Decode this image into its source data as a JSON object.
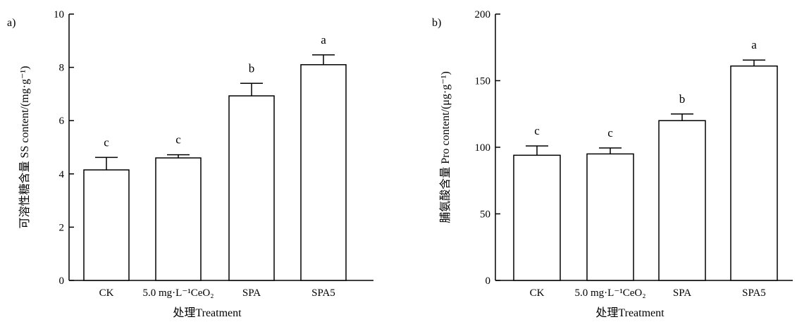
{
  "chart_data": [
    {
      "type": "bar",
      "panel_label": "a)",
      "categories": [
        "CK",
        "5.0 mg·L⁻¹CeO₂",
        "SPA",
        "SPA5"
      ],
      "values": [
        4.15,
        4.6,
        6.93,
        8.1
      ],
      "errors": [
        0.47,
        0.12,
        0.47,
        0.37
      ],
      "significance": [
        "c",
        "c",
        "b",
        "a"
      ],
      "xlabel": "处理Treatment",
      "ylabel": "可溶性糖含量 SS content/(mg·g⁻¹)",
      "ylim": [
        0,
        10
      ],
      "yticks": [
        0,
        2,
        4,
        6,
        8,
        10
      ],
      "grid": false,
      "legend": "none"
    },
    {
      "type": "bar",
      "panel_label": "b)",
      "categories": [
        "CK",
        "5.0 mg·L⁻¹CeO₂",
        "SPA",
        "SPA5"
      ],
      "values": [
        94,
        95,
        120,
        161
      ],
      "errors": [
        7,
        4.5,
        5,
        4.5
      ],
      "significance": [
        "c",
        "c",
        "b",
        "a"
      ],
      "xlabel": "处理Treatment",
      "ylabel": "脯氨酸含量 Pro content/(μg·g⁻¹)",
      "ylim": [
        0,
        200
      ],
      "yticks": [
        0,
        50,
        100,
        150,
        200
      ],
      "grid": false,
      "legend": "none"
    }
  ]
}
